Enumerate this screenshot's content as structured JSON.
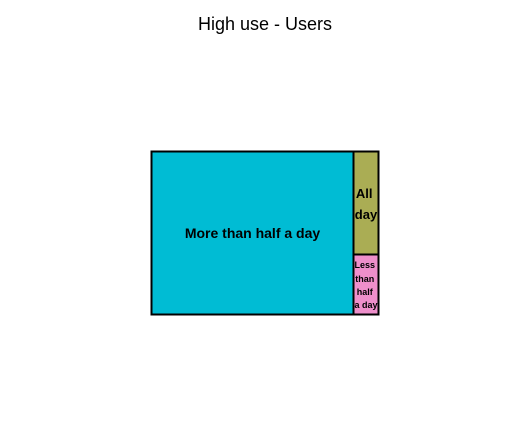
{
  "chart_data": {
    "type": "treemap",
    "title": "High use - Users",
    "tiles": [
      {
        "label": "More than half a day",
        "value": 88.5,
        "color": "#00BCD4"
      },
      {
        "label": "All day",
        "value": 7.3,
        "color": "#AAAD54"
      },
      {
        "label": "Less than half a day",
        "value": 4.2,
        "color": "#EE8FCB"
      }
    ]
  }
}
